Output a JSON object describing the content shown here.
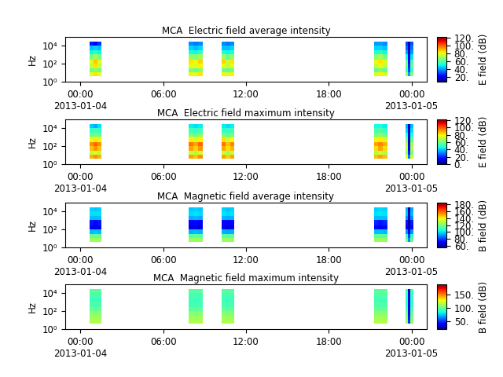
{
  "chart_data": [
    {
      "type": "heatmap",
      "title": "MCA  Electric field average intensity",
      "y_label": "Hz",
      "colorbar_label": "E field (dB)",
      "log": "y",
      "xlim": [
        -1.1,
        25.1
      ],
      "xticks": [
        {
          "value": 0,
          "label": "00:00\n2013-01-04"
        },
        {
          "value": 6,
          "label": "06:00"
        },
        {
          "value": 12,
          "label": "12:00"
        },
        {
          "value": 18,
          "label": "18:00"
        },
        {
          "value": 24,
          "label": "00:00\n2013-01-05"
        }
      ],
      "ylim": [
        1,
        90000
      ],
      "yticks": [
        {
          "value": 1,
          "label": "10⁰"
        },
        {
          "value": 100,
          "label": "10²"
        },
        {
          "value": 10000,
          "label": "10⁴"
        }
      ],
      "colorbar_range": [
        8,
        122
      ],
      "colorbar_ticks": [
        {
          "value": 20,
          "label": "20."
        },
        {
          "value": 40,
          "label": "40."
        },
        {
          "value": 60,
          "label": "60."
        },
        {
          "value": 80,
          "label": "80."
        },
        {
          "value": 100,
          "label": "100."
        },
        {
          "value": 120,
          "label": "120."
        }
      ],
      "y_edges": [
        4,
        10,
        30,
        100,
        300,
        1000,
        3000,
        10000,
        25000
      ],
      "passes": [
        {
          "x_edges": [
            0.69,
            0.97,
            1.26,
            1.54
          ],
          "cells": [
            [
              80,
              62,
              76,
              78,
              64,
              50,
              44,
              25
            ],
            [
              84,
              66,
              84,
              88,
              70,
              54,
              46,
              20
            ],
            [
              80,
              62,
              76,
              78,
              64,
              50,
              44,
              28
            ]
          ]
        },
        {
          "x_edges": [
            7.83,
            8.17,
            8.52,
            8.86
          ],
          "cells": [
            [
              82,
              64,
              80,
              84,
              68,
              52,
              46,
              38
            ],
            [
              80,
              62,
              78,
              80,
              66,
              50,
              44,
              36
            ],
            [
              84,
              66,
              82,
              86,
              70,
              54,
              46,
              38
            ]
          ]
        },
        {
          "x_edges": [
            10.23,
            10.53,
            10.84,
            11.14
          ],
          "cells": [
            [
              82,
              62,
              80,
              86,
              70,
              52,
              44,
              38
            ],
            [
              78,
              60,
              74,
              76,
              62,
              50,
              44,
              36
            ],
            [
              82,
              64,
              80,
              84,
              68,
              52,
              46,
              38
            ]
          ]
        },
        {
          "x_edges": [
            21.26,
            21.58,
            21.91,
            22.23
          ],
          "cells": [
            [
              78,
              60,
              74,
              80,
              66,
              52,
              46,
              40
            ],
            [
              82,
              64,
              80,
              84,
              70,
              54,
              46,
              40
            ],
            [
              78,
              60,
              74,
              78,
              64,
              50,
              44,
              38
            ]
          ]
        },
        {
          "x_edges": [
            23.54,
            23.73,
            23.92,
            24.11
          ],
          "cells": [
            [
              70,
              56,
              62,
              60,
              50,
              40,
              34,
              30
            ],
            [
              40,
              30,
              26,
              22,
              18,
              16,
              15,
              14
            ],
            [
              66,
              54,
              60,
              58,
              48,
              40,
              36,
              32
            ]
          ]
        }
      ]
    },
    {
      "type": "heatmap",
      "title": "MCA  Electric field maximum intensity",
      "y_label": "Hz",
      "colorbar_label": "E field (dB)",
      "log": "y",
      "xlim": [
        -1.1,
        25.1
      ],
      "xticks": [
        {
          "value": 0,
          "label": "00:00\n2013-01-04"
        },
        {
          "value": 6,
          "label": "06:00"
        },
        {
          "value": 12,
          "label": "12:00"
        },
        {
          "value": 18,
          "label": "18:00"
        },
        {
          "value": 24,
          "label": "00:00\n2013-01-05"
        }
      ],
      "ylim": [
        1,
        90000
      ],
      "yticks": [
        {
          "value": 1,
          "label": "10⁰"
        },
        {
          "value": 100,
          "label": "10²"
        },
        {
          "value": 10000,
          "label": "10⁴"
        }
      ],
      "colorbar_range": [
        0,
        122
      ],
      "colorbar_ticks": [
        {
          "value": 0,
          "label": "0."
        },
        {
          "value": 20,
          "label": "20."
        },
        {
          "value": 40,
          "label": "40."
        },
        {
          "value": 60,
          "label": "60."
        },
        {
          "value": 80,
          "label": "80."
        },
        {
          "value": 100,
          "label": "100."
        },
        {
          "value": 120,
          "label": "120."
        }
      ],
      "y_edges": [
        4,
        10,
        30,
        100,
        300,
        1000,
        3000,
        10000,
        25000
      ],
      "passes": [
        {
          "x_edges": [
            0.69,
            0.97,
            1.26,
            1.54
          ],
          "cells": [
            [
              88,
              70,
              86,
              92,
              76,
              58,
              50,
              40
            ],
            [
              92,
              74,
              92,
              98,
              80,
              60,
              52,
              36
            ],
            [
              88,
              70,
              86,
              92,
              76,
              58,
              50,
              42
            ]
          ]
        },
        {
          "x_edges": [
            7.83,
            8.17,
            8.52,
            8.86
          ],
          "cells": [
            [
              90,
              72,
              90,
              96,
              80,
              60,
              52,
              44
            ],
            [
              86,
              68,
              84,
              90,
              74,
              58,
              50,
              42
            ],
            [
              92,
              74,
              92,
              98,
              80,
              62,
              52,
              44
            ]
          ]
        },
        {
          "x_edges": [
            10.23,
            10.53,
            10.84,
            11.14
          ],
          "cells": [
            [
              90,
              72,
              90,
              96,
              82,
              60,
              50,
              44
            ],
            [
              84,
              66,
              82,
              86,
              72,
              56,
              50,
              42
            ],
            [
              90,
              72,
              88,
              94,
              78,
              60,
              52,
              44
            ]
          ]
        },
        {
          "x_edges": [
            21.26,
            21.58,
            21.91,
            22.23
          ],
          "cells": [
            [
              86,
              68,
              82,
              90,
              76,
              60,
              52,
              46
            ],
            [
              90,
              72,
              90,
              94,
              80,
              62,
              54,
              46
            ],
            [
              86,
              68,
              82,
              88,
              74,
              58,
              50,
              44
            ]
          ]
        },
        {
          "x_edges": [
            23.54,
            23.73,
            23.92,
            24.11
          ],
          "cells": [
            [
              78,
              62,
              70,
              68,
              58,
              46,
              40,
              36
            ],
            [
              30,
              20,
              15,
              10,
              8,
              8,
              8,
              8
            ],
            [
              74,
              60,
              68,
              66,
              56,
              46,
              42,
              38
            ]
          ]
        }
      ]
    },
    {
      "type": "heatmap",
      "title": "MCA  Magnetic field average intensity",
      "y_label": "Hz",
      "colorbar_label": "B field (dB)",
      "log": "y",
      "xlim": [
        -1.1,
        25.1
      ],
      "xticks": [
        {
          "value": 0,
          "label": "00:00\n2013-01-04"
        },
        {
          "value": 6,
          "label": "06:00"
        },
        {
          "value": 12,
          "label": "12:00"
        },
        {
          "value": 18,
          "label": "18:00"
        },
        {
          "value": 24,
          "label": "00:00\n2013-01-05"
        }
      ],
      "ylim": [
        1,
        90000
      ],
      "yticks": [
        {
          "value": 1,
          "label": "10⁰"
        },
        {
          "value": 100,
          "label": "10²"
        },
        {
          "value": 10000,
          "label": "10⁴"
        }
      ],
      "colorbar_range": [
        55,
        185
      ],
      "colorbar_ticks": [
        {
          "value": 60,
          "label": "60."
        },
        {
          "value": 80,
          "label": "80."
        },
        {
          "value": 100,
          "label": "100."
        },
        {
          "value": 120,
          "label": "120."
        },
        {
          "value": 140,
          "label": "140."
        },
        {
          "value": 160,
          "label": "160."
        },
        {
          "value": 180,
          "label": "180."
        }
      ],
      "y_edges": [
        4,
        10,
        30,
        100,
        300,
        1000,
        3000,
        10000,
        25000
      ],
      "passes": [
        {
          "x_edges": [
            0.69,
            0.97,
            1.26,
            1.54
          ],
          "cells": [
            [
              125,
              115,
              95,
              70,
              74,
              96,
              100,
              98
            ],
            [
              126,
              116,
              96,
              68,
              72,
              95,
              100,
              97
            ],
            [
              125,
              115,
              95,
              70,
              74,
              96,
              100,
              98
            ]
          ]
        },
        {
          "x_edges": [
            7.83,
            8.17,
            8.52,
            8.86
          ],
          "cells": [
            [
              124,
              114,
              94,
              66,
              70,
              94,
              99,
              97
            ],
            [
              125,
              115,
              95,
              68,
              72,
              95,
              100,
              98
            ],
            [
              124,
              114,
              94,
              66,
              70,
              94,
              99,
              97
            ]
          ]
        },
        {
          "x_edges": [
            10.23,
            10.53,
            10.84,
            11.14
          ],
          "cells": [
            [
              125,
              114,
              94,
              68,
              72,
              95,
              100,
              98
            ],
            [
              124,
              113,
              93,
              66,
              70,
              94,
              99,
              97
            ],
            [
              125,
              114,
              94,
              68,
              72,
              95,
              100,
              98
            ]
          ]
        },
        {
          "x_edges": [
            21.26,
            21.58,
            21.91,
            22.23
          ],
          "cells": [
            [
              124,
              114,
              96,
              72,
              76,
              96,
              100,
              98
            ],
            [
              125,
              115,
              96,
              70,
              74,
              96,
              101,
              99
            ],
            [
              124,
              114,
              95,
              72,
              76,
              96,
              100,
              98
            ]
          ]
        },
        {
          "x_edges": [
            23.54,
            23.73,
            23.92,
            24.11
          ],
          "cells": [
            [
              118,
              108,
              90,
              72,
              74,
              90,
              96,
              94
            ],
            [
              90,
              80,
              70,
              60,
              60,
              62,
              62,
              60
            ],
            [
              116,
              106,
              90,
              72,
              74,
              90,
              95,
              93
            ]
          ]
        }
      ]
    },
    {
      "type": "heatmap",
      "title": "MCA  Magnetic field maximum intensity",
      "y_label": "Hz",
      "colorbar_label": "B field (dB)",
      "log": "y",
      "xlim": [
        -1.1,
        25.1
      ],
      "xticks": [
        {
          "value": 0,
          "label": "00:00\n2013-01-04"
        },
        {
          "value": 6,
          "label": "06:00"
        },
        {
          "value": 12,
          "label": "12:00"
        },
        {
          "value": 18,
          "label": "18:00"
        },
        {
          "value": 24,
          "label": "00:00\n2013-01-05"
        }
      ],
      "ylim": [
        1,
        90000
      ],
      "yticks": [
        {
          "value": 1,
          "label": "10⁰"
        },
        {
          "value": 100,
          "label": "10²"
        },
        {
          "value": 10000,
          "label": "10⁴"
        }
      ],
      "colorbar_range": [
        20,
        190
      ],
      "colorbar_ticks": [
        {
          "value": 50,
          "label": "50."
        },
        {
          "value": 100,
          "label": "100."
        },
        {
          "value": 150,
          "label": "150."
        }
      ],
      "y_edges": [
        4,
        10,
        30,
        100,
        300,
        1000,
        3000,
        10000,
        25000
      ],
      "passes": [
        {
          "x_edges": [
            0.69,
            0.97,
            1.26,
            1.54
          ],
          "cells": [
            [
              115,
              112,
              108,
              100,
              95,
              92,
              95,
              98
            ],
            [
              116,
              113,
              108,
              99,
              94,
              92,
              95,
              98
            ],
            [
              115,
              112,
              108,
              100,
              95,
              92,
              95,
              98
            ]
          ]
        },
        {
          "x_edges": [
            7.83,
            8.17,
            8.52,
            8.86
          ],
          "cells": [
            [
              115,
              112,
              107,
              99,
              94,
              92,
              95,
              98
            ],
            [
              114,
              111,
              106,
              98,
              94,
              91,
              94,
              97
            ],
            [
              115,
              112,
              107,
              99,
              94,
              92,
              95,
              98
            ]
          ]
        },
        {
          "x_edges": [
            10.23,
            10.53,
            10.84,
            11.14
          ],
          "cells": [
            [
              115,
              112,
              107,
              99,
              95,
              92,
              95,
              98
            ],
            [
              114,
              111,
              106,
              98,
              94,
              91,
              94,
              97
            ],
            [
              115,
              112,
              107,
              99,
              95,
              92,
              95,
              98
            ]
          ]
        },
        {
          "x_edges": [
            21.26,
            21.58,
            21.91,
            22.23
          ],
          "cells": [
            [
              115,
              112,
              108,
              100,
              96,
              93,
              96,
              99
            ],
            [
              116,
              113,
              108,
              100,
              96,
              93,
              96,
              99
            ],
            [
              115,
              112,
              108,
              100,
              96,
              93,
              96,
              99
            ]
          ]
        },
        {
          "x_edges": [
            23.54,
            23.73,
            23.92,
            24.11
          ],
          "cells": [
            [
              110,
              106,
              102,
              95,
              90,
              88,
              90,
              92
            ],
            [
              50,
              45,
              40,
              35,
              35,
              35,
              35,
              35
            ],
            [
              108,
              104,
              100,
              94,
              90,
              88,
              90,
              92
            ]
          ]
        }
      ]
    }
  ]
}
